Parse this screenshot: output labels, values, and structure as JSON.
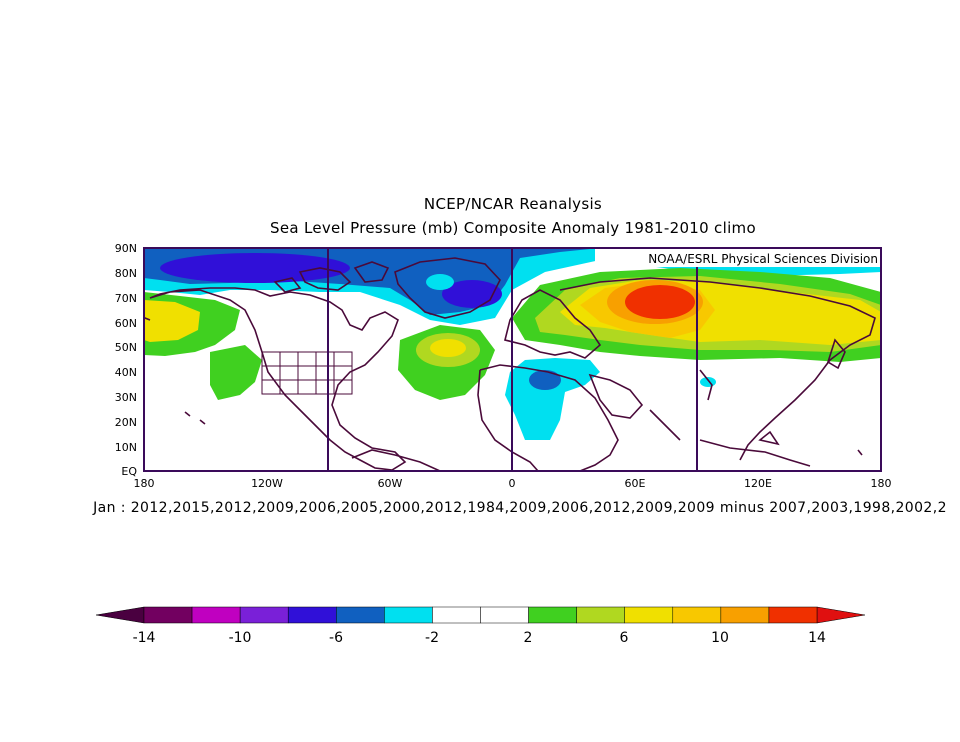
{
  "header": {
    "title": "NCEP/NCAR Reanalysis",
    "subtitle": "Sea Level Pressure (mb) Composite Anomaly 1981-2010 climo"
  },
  "map": {
    "credit": "NOAA/ESRL Physical Sciences Division",
    "lat_labels": [
      "90N",
      "80N",
      "70N",
      "60N",
      "50N",
      "40N",
      "30N",
      "20N",
      "10N",
      "EQ"
    ],
    "lon_labels": [
      "180",
      "120W",
      "60W",
      "0",
      "60E",
      "120E",
      "180"
    ],
    "lat_range": [
      0,
      90
    ],
    "lon_range": [
      -180,
      180
    ],
    "projection": "cylindrical equidistant"
  },
  "caption": "Jan : 2012,2015,2012,2009,2006,2005,2000,2012,1984,2009,2006,2012,2009,2009 minus 2007,2003,1998,2002,2",
  "colorbar": {
    "labels": [
      "-14",
      "-10",
      "-6",
      "-2",
      "2",
      "6",
      "10",
      "14"
    ],
    "levels": [
      -14,
      -12,
      -10,
      -8,
      -6,
      -4,
      -2,
      0,
      2,
      4,
      6,
      8,
      10,
      12,
      14
    ],
    "colors": [
      "#720060",
      "#c000c0",
      "#7a20d8",
      "#3010d8",
      "#1060c0",
      "#00e0f0",
      "#ffffff",
      "#ffffff",
      "#40d020",
      "#b0d820",
      "#f0e000",
      "#f8c800",
      "#f8a000",
      "#f03000"
    ],
    "under_color": "#4a0040",
    "over_color": "#e01010"
  }
}
